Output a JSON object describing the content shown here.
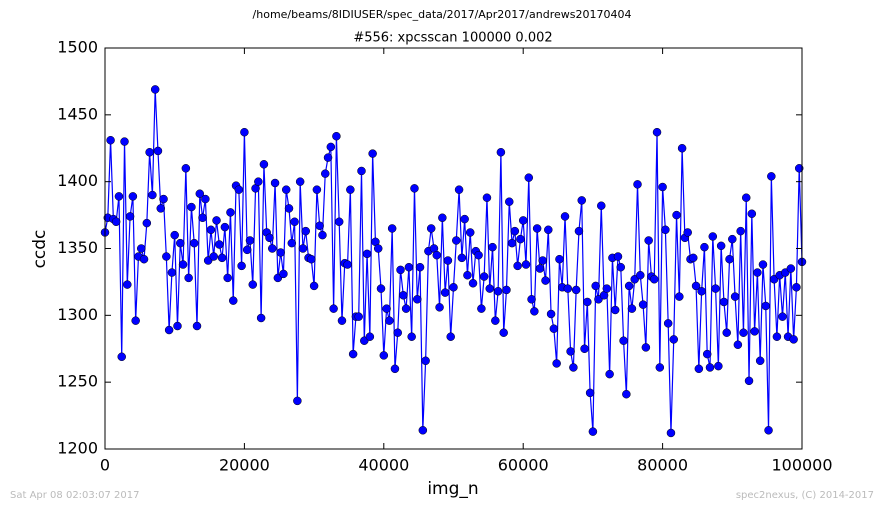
{
  "chart_data": {
    "type": "line",
    "suptitle": "/home/beams/8IDIUSER/spec_data/2017/Apr2017/andrews20170404",
    "title": "#556: xpcsscan 100000 0.002",
    "xlabel": "img_n",
    "ylabel": "ccdc",
    "xlim": [
      0,
      100000
    ],
    "xticks": [
      0,
      20000,
      40000,
      60000,
      80000,
      100000
    ],
    "ylim": [
      1200,
      1500
    ],
    "yticks": [
      1200,
      1250,
      1300,
      1350,
      1400,
      1450,
      1500
    ],
    "x": [
      0,
      400,
      800,
      1200,
      1600,
      2000,
      2400,
      2800,
      3200,
      3600,
      4000,
      4400,
      4800,
      5200,
      5600,
      6000,
      6400,
      6800,
      7200,
      7600,
      8000,
      8400,
      8800,
      9200,
      9600,
      10000,
      10400,
      10800,
      11200,
      11600,
      12000,
      12400,
      12800,
      13200,
      13600,
      14000,
      14400,
      14800,
      15200,
      15600,
      16000,
      16400,
      16800,
      17200,
      17600,
      18000,
      18400,
      18800,
      19200,
      19600,
      20000,
      20400,
      20800,
      21200,
      21600,
      22000,
      22400,
      22800,
      23200,
      23600,
      24000,
      24400,
      24800,
      25200,
      25600,
      26000,
      26400,
      26800,
      27200,
      27600,
      28000,
      28400,
      28800,
      29200,
      29600,
      30000,
      30400,
      30800,
      31200,
      31600,
      32000,
      32400,
      32800,
      33200,
      33600,
      34000,
      34400,
      34800,
      35200,
      35600,
      36000,
      36400,
      36800,
      37200,
      37600,
      38000,
      38400,
      38800,
      39200,
      39600,
      40000,
      40400,
      40800,
      41200,
      41600,
      42000,
      42400,
      42800,
      43200,
      43600,
      44000,
      44400,
      44800,
      45200,
      45600,
      46000,
      46400,
      46800,
      47200,
      47600,
      48000,
      48400,
      48800,
      49200,
      49600,
      50000,
      50400,
      50800,
      51200,
      51600,
      52000,
      52400,
      52800,
      53200,
      53600,
      54000,
      54400,
      54800,
      55200,
      55600,
      56000,
      56400,
      56800,
      57200,
      57600,
      58000,
      58400,
      58800,
      59200,
      59600,
      60000,
      60400,
      60800,
      61200,
      61600,
      62000,
      62400,
      62800,
      63200,
      63600,
      64000,
      64400,
      64800,
      65200,
      65600,
      66000,
      66400,
      66800,
      67200,
      67600,
      68000,
      68400,
      68800,
      69200,
      69600,
      70000,
      70400,
      70800,
      71200,
      71600,
      72000,
      72400,
      72800,
      73200,
      73600,
      74000,
      74400,
      74800,
      75200,
      75600,
      76000,
      76400,
      76800,
      77200,
      77600,
      78000,
      78400,
      78800,
      79200,
      79600,
      80000,
      80400,
      80800,
      81200,
      81600,
      82000,
      82400,
      82800,
      83200,
      83600,
      84000,
      84400,
      84800,
      85200,
      85600,
      86000,
      86400,
      86800,
      87200,
      87600,
      88000,
      88400,
      88800,
      89200,
      89600,
      90000,
      90400,
      90800,
      91200,
      91600,
      92000,
      92400,
      92800,
      93200,
      93600,
      94000,
      94400,
      94800,
      95200,
      95600,
      96000,
      96400,
      96800,
      97200,
      97600,
      98000,
      98400,
      98800,
      99200,
      99600,
      100000
    ],
    "series": [
      {
        "name": "ccdc",
        "color": "#0000ff",
        "values": [
          1362,
          1373,
          1431,
          1372,
          1370,
          1389,
          1269,
          1430,
          1323,
          1374,
          1389,
          1296,
          1344,
          1350,
          1342,
          1369,
          1422,
          1390,
          1469,
          1423,
          1380,
          1387,
          1344,
          1289,
          1332,
          1360,
          1292,
          1354,
          1338,
          1410,
          1328,
          1381,
          1354,
          1292,
          1391,
          1373,
          1387,
          1341,
          1364,
          1344,
          1371,
          1353,
          1343,
          1366,
          1328,
          1377,
          1311,
          1397,
          1394,
          1337,
          1437,
          1349,
          1356,
          1323,
          1395,
          1400,
          1298,
          1413,
          1362,
          1358,
          1350,
          1399,
          1328,
          1347,
          1331,
          1394,
          1380,
          1354,
          1370,
          1236,
          1400,
          1350,
          1363,
          1343,
          1342,
          1322,
          1394,
          1367,
          1360,
          1406,
          1418,
          1426,
          1305,
          1434,
          1370,
          1296,
          1339,
          1338,
          1394,
          1271,
          1299,
          1299,
          1408,
          1281,
          1346,
          1284,
          1421,
          1355,
          1350,
          1320,
          1270,
          1305,
          1296,
          1365,
          1260,
          1287,
          1334,
          1315,
          1305,
          1336,
          1284,
          1395,
          1312,
          1336,
          1214,
          1266,
          1348,
          1365,
          1350,
          1345,
          1306,
          1373,
          1317,
          1341,
          1284,
          1321,
          1356,
          1394,
          1343,
          1372,
          1330,
          1362,
          1324,
          1348,
          1345,
          1305,
          1329,
          1388,
          1320,
          1351,
          1296,
          1318,
          1422,
          1287,
          1319,
          1385,
          1354,
          1363,
          1337,
          1357,
          1371,
          1338,
          1403,
          1312,
          1303,
          1365,
          1335,
          1341,
          1326,
          1364,
          1301,
          1290,
          1264,
          1342,
          1321,
          1374,
          1320,
          1273,
          1261,
          1319,
          1363,
          1386,
          1275,
          1310,
          1242,
          1213,
          1322,
          1312,
          1382,
          1315,
          1320,
          1256,
          1343,
          1304,
          1344,
          1336,
          1281,
          1241,
          1322,
          1305,
          1327,
          1398,
          1330,
          1308,
          1276,
          1356,
          1329,
          1327,
          1437,
          1261,
          1396,
          1364,
          1294,
          1212,
          1282,
          1375,
          1314,
          1425,
          1358,
          1362,
          1342,
          1343,
          1322,
          1260,
          1318,
          1351,
          1271,
          1261,
          1359,
          1320,
          1262,
          1352,
          1310,
          1287,
          1342,
          1357,
          1314,
          1278,
          1363,
          1287,
          1388,
          1251,
          1376,
          1288,
          1332,
          1266,
          1338,
          1307,
          1214,
          1404,
          1327,
          1284,
          1330,
          1299,
          1332,
          1284,
          1335,
          1282,
          1321,
          1410,
          1340
        ]
      }
    ]
  },
  "footer": {
    "left": "Sat Apr 08 02:03:07 2017",
    "right": "spec2nexus, (C) 2014-2017"
  }
}
